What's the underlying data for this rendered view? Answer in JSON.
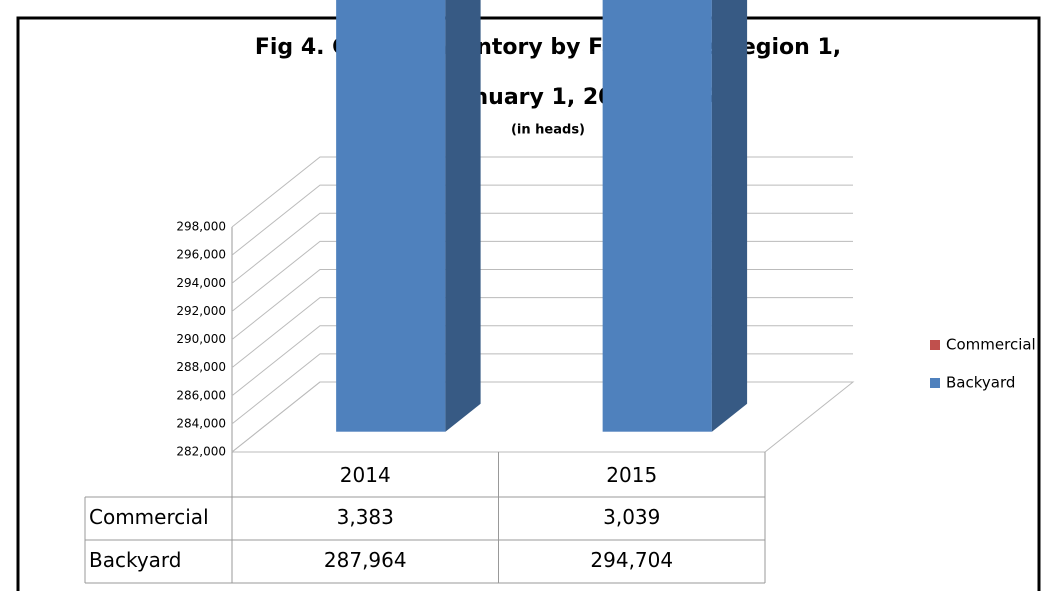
{
  "chart_data": {
    "type": "bar3d_stacked",
    "title": [
      "Fig 4. Cattle: Inventory by Farm Type,Region 1,",
      "as of January 1, 2014-2015"
    ],
    "subtitle": "(in heads)",
    "categories": [
      "2014",
      "2015"
    ],
    "series": [
      {
        "name": "Backyard",
        "color": "#4f81bd",
        "values": [
          287964,
          294704
        ],
        "value_labels": [
          "287,964",
          "294,704"
        ]
      },
      {
        "name": "Commercial",
        "color": "#c0504d",
        "values": [
          3383,
          3039
        ],
        "value_labels": [
          "3,383",
          "3,039"
        ]
      }
    ],
    "ylim": [
      282000,
      298000
    ],
    "yticks": [
      {
        "value": 282000,
        "label": "282,000"
      },
      {
        "value": 284000,
        "label": "284,000"
      },
      {
        "value": 286000,
        "label": "286,000"
      },
      {
        "value": 288000,
        "label": "288,000"
      },
      {
        "value": 290000,
        "label": "290,000"
      },
      {
        "value": 292000,
        "label": "292,000"
      },
      {
        "value": 294000,
        "label": "294,000"
      },
      {
        "value": 296000,
        "label": "296,000"
      },
      {
        "value": 298000,
        "label": "298,000"
      }
    ],
    "grid": true,
    "legend": "right",
    "data_table": true
  }
}
